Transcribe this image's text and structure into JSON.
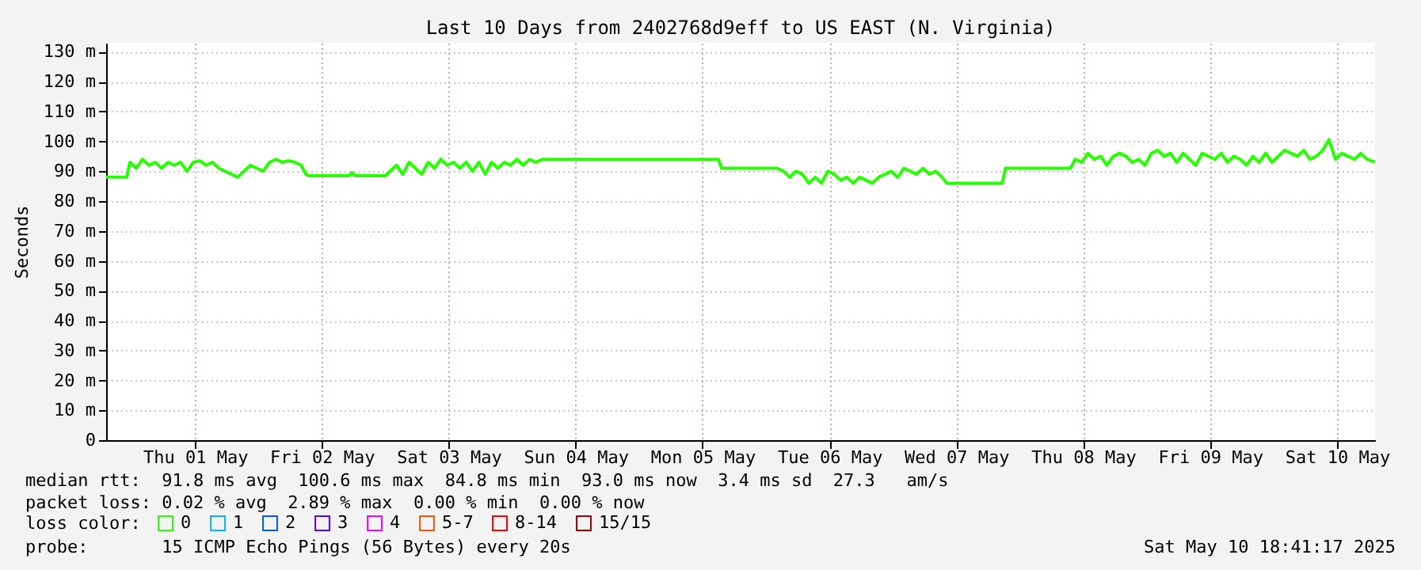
{
  "chart_data": {
    "type": "line",
    "title": "Last 10 Days from 2402768d9eff to US EAST (N. Virginia)",
    "ylabel": "Seconds",
    "x": [
      "2025-04-30T19:12",
      "2025-04-30T23:06",
      "2025-04-30T23:42",
      "2025-05-01T00:54",
      "2025-05-01T02:06",
      "2025-05-01T03:18",
      "2025-05-01T04:30",
      "2025-05-01T05:42",
      "2025-05-01T06:54",
      "2025-05-01T08:06",
      "2025-05-01T09:18",
      "2025-05-01T10:30",
      "2025-05-01T11:42",
      "2025-05-01T12:54",
      "2025-05-01T14:06",
      "2025-05-01T15:18",
      "2025-05-01T16:30",
      "2025-05-01T17:42",
      "2025-05-01T18:54",
      "2025-05-01T20:06",
      "2025-05-01T21:18",
      "2025-05-01T22:30",
      "2025-05-01T23:42",
      "2025-05-02T00:54",
      "2025-05-02T02:06",
      "2025-05-02T03:18",
      "2025-05-02T04:30",
      "2025-05-02T05:42",
      "2025-05-02T06:54",
      "2025-05-02T08:06",
      "2025-05-02T09:00",
      "2025-05-02T09:36",
      "2025-05-02T17:06",
      "2025-05-02T17:42",
      "2025-05-02T18:18",
      "2025-05-03T00:00",
      "2025-05-03T00:54",
      "2025-05-03T02:06",
      "2025-05-03T03:18",
      "2025-05-03T04:30",
      "2025-05-03T05:42",
      "2025-05-03T06:54",
      "2025-05-03T08:06",
      "2025-05-03T09:18",
      "2025-05-03T10:30",
      "2025-05-03T11:42",
      "2025-05-03T12:54",
      "2025-05-03T14:06",
      "2025-05-03T15:18",
      "2025-05-03T16:30",
      "2025-05-03T17:42",
      "2025-05-03T18:54",
      "2025-05-03T20:06",
      "2025-05-03T21:18",
      "2025-05-03T22:30",
      "2025-05-03T23:42",
      "2025-05-04T00:54",
      "2025-05-04T02:06",
      "2025-05-04T03:18",
      "2025-05-04T04:30",
      "2025-05-04T05:42",
      "2025-05-04T07:30",
      "2025-05-04T23:06",
      "2025-05-05T15:00",
      "2025-05-05T15:36",
      "2025-05-06T02:06",
      "2025-05-06T03:18",
      "2025-05-06T04:30",
      "2025-05-06T05:42",
      "2025-05-06T06:54",
      "2025-05-06T08:06",
      "2025-05-06T09:18",
      "2025-05-06T10:30",
      "2025-05-06T11:42",
      "2025-05-06T12:54",
      "2025-05-06T14:06",
      "2025-05-06T15:18",
      "2025-05-06T16:30",
      "2025-05-06T17:42",
      "2025-05-06T18:54",
      "2025-05-06T20:06",
      "2025-05-06T21:18",
      "2025-05-06T22:30",
      "2025-05-06T23:42",
      "2025-05-07T00:54",
      "2025-05-07T02:06",
      "2025-05-07T03:18",
      "2025-05-07T04:30",
      "2025-05-07T05:42",
      "2025-05-07T06:54",
      "2025-05-07T08:06",
      "2025-05-07T09:18",
      "2025-05-07T10:12",
      "2025-05-07T20:42",
      "2025-05-07T21:18",
      "2025-05-08T09:36",
      "2025-05-08T10:30",
      "2025-05-08T11:42",
      "2025-05-08T12:54",
      "2025-05-08T14:06",
      "2025-05-08T15:18",
      "2025-05-08T16:30",
      "2025-05-08T17:42",
      "2025-05-08T18:54",
      "2025-05-08T20:06",
      "2025-05-08T21:18",
      "2025-05-08T22:30",
      "2025-05-08T23:42",
      "2025-05-09T00:54",
      "2025-05-09T02:06",
      "2025-05-09T03:18",
      "2025-05-09T04:30",
      "2025-05-09T05:42",
      "2025-05-09T06:54",
      "2025-05-09T08:06",
      "2025-05-09T09:18",
      "2025-05-09T10:30",
      "2025-05-09T11:42",
      "2025-05-09T12:54",
      "2025-05-09T14:06",
      "2025-05-09T15:18",
      "2025-05-09T16:30",
      "2025-05-09T17:42",
      "2025-05-09T18:54",
      "2025-05-09T20:06",
      "2025-05-09T21:18",
      "2025-05-09T22:30",
      "2025-05-09T23:42",
      "2025-05-10T00:54",
      "2025-05-10T02:06",
      "2025-05-10T03:18",
      "2025-05-10T04:30",
      "2025-05-10T05:42",
      "2025-05-10T06:54",
      "2025-05-10T08:06",
      "2025-05-10T09:18",
      "2025-05-10T10:30",
      "2025-05-10T11:42",
      "2025-05-10T12:54",
      "2025-05-10T14:06",
      "2025-05-10T15:18",
      "2025-05-10T16:30",
      "2025-05-10T17:42",
      "2025-05-10T19:12"
    ],
    "series": [
      {
        "name": "0",
        "color": "#26ff00",
        "values": [
          88,
          88,
          93,
          91,
          94,
          92,
          93,
          91,
          93,
          92,
          93,
          90,
          93,
          93.5,
          92,
          93,
          91,
          90,
          89,
          88,
          90,
          92,
          91,
          90,
          93,
          94,
          93,
          93.5,
          93,
          92,
          89,
          88.5,
          88.5,
          89.5,
          88.5,
          88.5,
          90,
          92,
          89,
          93,
          91,
          89,
          93,
          91,
          94,
          92,
          93,
          91,
          93,
          90,
          93,
          89,
          93,
          91,
          93,
          92,
          94,
          92,
          94,
          93,
          94,
          94,
          94,
          94,
          91,
          91,
          90,
          88,
          90,
          89,
          86,
          88,
          86,
          90,
          89,
          87,
          88,
          86,
          88,
          87,
          86,
          88,
          89,
          90,
          88,
          91,
          90,
          89,
          91,
          89,
          90,
          88,
          86,
          86,
          91,
          91,
          94,
          93,
          96,
          94,
          95,
          92,
          95,
          96,
          95,
          93,
          94,
          92,
          96,
          97,
          95,
          96,
          93,
          96,
          94,
          92,
          96,
          95,
          94,
          96,
          93,
          95,
          94,
          92,
          95,
          93,
          96,
          93,
          95,
          97,
          96,
          95,
          97,
          94,
          95,
          97,
          100.6,
          94,
          96,
          95,
          94,
          96,
          94,
          93
        ]
      },
      {
        "name": "1",
        "color": "#00b8ff",
        "values": [
          null,
          null,
          null,
          null,
          null,
          null,
          null,
          null,
          null,
          null,
          null,
          null,
          null,
          null,
          null,
          null,
          null,
          null,
          null,
          null,
          null,
          null,
          null,
          null,
          null,
          null,
          null,
          null,
          null,
          null,
          null,
          null,
          null,
          null,
          null,
          null,
          null,
          null,
          null,
          null,
          null,
          null,
          null,
          null,
          null,
          null,
          null,
          null,
          null,
          null,
          null,
          null,
          null,
          null,
          null,
          null,
          null,
          null,
          null,
          null,
          null,
          null,
          null,
          null,
          null,
          null,
          null,
          null,
          null,
          null,
          null,
          null,
          null,
          null,
          null,
          null,
          null,
          null,
          null,
          null,
          null,
          null,
          null,
          null,
          null,
          null,
          null,
          null,
          null,
          null,
          null,
          null,
          null,
          null,
          null,
          null,
          null,
          null,
          null,
          null,
          null,
          null,
          null,
          null,
          null,
          null,
          null,
          null,
          null,
          null,
          null,
          null,
          null,
          null,
          null,
          null,
          null,
          null,
          null,
          null,
          null,
          null,
          null,
          null,
          null,
          null,
          null,
          null,
          null,
          null,
          null,
          null,
          null,
          null,
          null,
          null,
          null,
          null,
          null,
          null,
          null,
          null,
          null,
          null
        ]
      },
      {
        "name": "2",
        "color": "#0059ff",
        "values": [
          null,
          null,
          null,
          null,
          null,
          null,
          null,
          null,
          null,
          null,
          null,
          null,
          null,
          null,
          null,
          null,
          null,
          null,
          null,
          null,
          null,
          null,
          null,
          null,
          null,
          null,
          null,
          null,
          null,
          null,
          null,
          null,
          null,
          null,
          null,
          null,
          null,
          null,
          null,
          null,
          null,
          null,
          null,
          null,
          null,
          null,
          null,
          null,
          null,
          null,
          null,
          null,
          null,
          null,
          null,
          null,
          null,
          null,
          null,
          null,
          null,
          null,
          null,
          null,
          null,
          null,
          null,
          null,
          null,
          null,
          null,
          null,
          null,
          null,
          null,
          null,
          null,
          null,
          null,
          null,
          null,
          null,
          null,
          null,
          null,
          null,
          null,
          null,
          null,
          null,
          null,
          null,
          null,
          null,
          null,
          null,
          null,
          null,
          null,
          null,
          null,
          null,
          null,
          null,
          null,
          null,
          null,
          null,
          null,
          null,
          null,
          null,
          null,
          null,
          null,
          null,
          null,
          null,
          null,
          null,
          null,
          null,
          null,
          null,
          null,
          null,
          null,
          null,
          null,
          null,
          null,
          null,
          null,
          null,
          null,
          null,
          null,
          null,
          null,
          null,
          null,
          null,
          null,
          null
        ]
      },
      {
        "name": "3",
        "color": "#5e00ff",
        "values": [
          null,
          null,
          null,
          null,
          null,
          null,
          null,
          null,
          null,
          null,
          null,
          null,
          null,
          null,
          null,
          null,
          null,
          null,
          null,
          null,
          null,
          null,
          null,
          null,
          null,
          null,
          null,
          null,
          null,
          null,
          null,
          null,
          null,
          null,
          null,
          null,
          null,
          null,
          null,
          null,
          null,
          null,
          null,
          null,
          null,
          null,
          null,
          null,
          null,
          null,
          null,
          null,
          null,
          null,
          null,
          null,
          null,
          null,
          null,
          null,
          null,
          null,
          null,
          null,
          null,
          null,
          null,
          null,
          null,
          null,
          null,
          null,
          null,
          null,
          null,
          null,
          null,
          null,
          null,
          null,
          null,
          null,
          null,
          null,
          null,
          null,
          null,
          null,
          null,
          null,
          null,
          null,
          null,
          null,
          null,
          null,
          null,
          null,
          null,
          null,
          null,
          null,
          null,
          null,
          null,
          null,
          null,
          null,
          null,
          null,
          null,
          null,
          null,
          null,
          null,
          null,
          null,
          null,
          null,
          null,
          null,
          null,
          null,
          null,
          null,
          null,
          null,
          null,
          null,
          null,
          null,
          null,
          null,
          null,
          null,
          null,
          null,
          null,
          null,
          null,
          null,
          null,
          null,
          null
        ]
      },
      {
        "name": "4",
        "color": "#ff00ff",
        "values": [
          null,
          null,
          null,
          null,
          null,
          null,
          null,
          null,
          null,
          null,
          null,
          null,
          null,
          null,
          null,
          null,
          null,
          null,
          null,
          null,
          null,
          null,
          null,
          null,
          null,
          null,
          null,
          null,
          null,
          null,
          null,
          null,
          null,
          null,
          null,
          null,
          null,
          null,
          null,
          null,
          null,
          null,
          null,
          null,
          null,
          null,
          null,
          null,
          null,
          null,
          null,
          null,
          null,
          null,
          null,
          null,
          null,
          null,
          null,
          null,
          null,
          null,
          null,
          null,
          null,
          null,
          null,
          null,
          null,
          null,
          null,
          null,
          null,
          null,
          null,
          null,
          null,
          null,
          null,
          null,
          null,
          null,
          null,
          null,
          null,
          null,
          null,
          null,
          null,
          null,
          null,
          null,
          null,
          null,
          null,
          null,
          null,
          null,
          null,
          null,
          null,
          null,
          null,
          null,
          null,
          null,
          null,
          null,
          null,
          null,
          null,
          null,
          null,
          null,
          null,
          null,
          null,
          null,
          null,
          null,
          null,
          null,
          null,
          null,
          null,
          null,
          null,
          null,
          null,
          null,
          null,
          null,
          null,
          null,
          null,
          null,
          null,
          null,
          null,
          null,
          null,
          null,
          null,
          null
        ]
      },
      {
        "name": "5-7",
        "color": "#ff5500",
        "values": [
          null,
          null,
          null,
          null,
          null,
          null,
          null,
          null,
          null,
          null,
          null,
          null,
          null,
          null,
          null,
          null,
          null,
          null,
          null,
          null,
          null,
          null,
          null,
          null,
          null,
          null,
          null,
          null,
          null,
          null,
          null,
          null,
          null,
          null,
          null,
          null,
          null,
          null,
          null,
          null,
          null,
          null,
          null,
          null,
          null,
          null,
          null,
          null,
          null,
          null,
          null,
          null,
          null,
          null,
          null,
          null,
          null,
          null,
          null,
          null,
          null,
          null,
          null,
          null,
          null,
          null,
          null,
          null,
          null,
          null,
          null,
          null,
          null,
          null,
          null,
          null,
          null,
          null,
          null,
          null,
          null,
          null,
          null,
          null,
          null,
          null,
          null,
          null,
          null,
          null,
          null,
          null,
          null,
          null,
          null,
          null,
          null,
          null,
          null,
          null,
          null,
          null,
          null,
          null,
          null,
          null,
          null,
          null,
          null,
          null,
          null,
          null,
          null,
          null,
          null,
          null,
          null,
          null,
          null,
          null,
          null,
          null,
          null,
          null,
          null,
          null,
          null,
          null,
          null,
          null,
          null,
          null,
          null,
          null,
          null,
          null,
          null,
          null,
          null,
          null,
          null,
          null,
          null,
          null
        ]
      },
      {
        "name": "8-14",
        "color": "#ff0000",
        "values": [
          null,
          null,
          null,
          null,
          null,
          null,
          null,
          null,
          null,
          null,
          null,
          null,
          null,
          null,
          null,
          null,
          null,
          null,
          null,
          null,
          null,
          null,
          null,
          null,
          null,
          null,
          null,
          null,
          null,
          null,
          null,
          null,
          null,
          null,
          null,
          null,
          null,
          null,
          null,
          null,
          null,
          null,
          null,
          null,
          null,
          null,
          null,
          null,
          null,
          null,
          null,
          null,
          null,
          null,
          null,
          null,
          null,
          null,
          null,
          null,
          null,
          null,
          null,
          null,
          null,
          null,
          null,
          null,
          null,
          null,
          null,
          null,
          null,
          null,
          null,
          null,
          null,
          null,
          null,
          null,
          null,
          null,
          null,
          null,
          null,
          null,
          null,
          null,
          null,
          null,
          null,
          null,
          null,
          null,
          null,
          null,
          null,
          null,
          null,
          null,
          null,
          null,
          null,
          null,
          null,
          null,
          null,
          null,
          null,
          null,
          null,
          null,
          null,
          null,
          null,
          null,
          null,
          null,
          null,
          null,
          null,
          null,
          null,
          null,
          null,
          null,
          null,
          null,
          null,
          null,
          null,
          null,
          null,
          null,
          null,
          null,
          null,
          null,
          null,
          null,
          null,
          null,
          null,
          null
        ]
      },
      {
        "name": "15/15",
        "color": "#a10000",
        "values": [
          null,
          null,
          null,
          null,
          null,
          null,
          null,
          null,
          null,
          null,
          null,
          null,
          null,
          null,
          null,
          null,
          null,
          null,
          null,
          null,
          null,
          null,
          null,
          null,
          null,
          null,
          null,
          null,
          null,
          null,
          null,
          null,
          null,
          null,
          null,
          null,
          null,
          null,
          null,
          null,
          null,
          null,
          null,
          null,
          null,
          null,
          null,
          null,
          null,
          null,
          null,
          null,
          null,
          null,
          null,
          null,
          null,
          null,
          null,
          null,
          null,
          null,
          null,
          null,
          null,
          null,
          null,
          null,
          null,
          null,
          null,
          null,
          null,
          null,
          null,
          null,
          null,
          null,
          null,
          null,
          null,
          null,
          null,
          null,
          null,
          null,
          null,
          null,
          null,
          null,
          null,
          null,
          null,
          null,
          null,
          null,
          null,
          null,
          null,
          null,
          null,
          null,
          null,
          null,
          null,
          null,
          null,
          null,
          null,
          null,
          null,
          null,
          null,
          null,
          null,
          null,
          null,
          null,
          null,
          null,
          null,
          null,
          null,
          null,
          null,
          null,
          null,
          null,
          null,
          null,
          null,
          null,
          null,
          null,
          null,
          null,
          null,
          null,
          null,
          null,
          null,
          null,
          null,
          null
        ]
      }
    ],
    "legend_title": "loss color:",
    "legend": "bottom left",
    "grid": true,
    "xlim": [
      "2025-04-30T19:12",
      "2025-05-10T19:12"
    ],
    "xticks": [
      {
        "value": "2025-05-01T12:00",
        "label": "Thu 01 May"
      },
      {
        "value": "2025-05-02T12:00",
        "label": "Fri 02 May"
      },
      {
        "value": "2025-05-03T12:00",
        "label": "Sat 03 May"
      },
      {
        "value": "2025-05-04T12:00",
        "label": "Sun 04 May"
      },
      {
        "value": "2025-05-05T12:00",
        "label": "Mon 05 May"
      },
      {
        "value": "2025-05-06T12:00",
        "label": "Tue 06 May"
      },
      {
        "value": "2025-05-07T12:00",
        "label": "Wed 07 May"
      },
      {
        "value": "2025-05-08T12:00",
        "label": "Thu 08 May"
      },
      {
        "value": "2025-05-09T12:00",
        "label": "Fri 09 May"
      },
      {
        "value": "2025-05-10T12:00",
        "label": "Sat 10 May"
      }
    ],
    "ylim": [
      0,
      133
    ],
    "yticks": [
      0,
      {
        "value": 10,
        "label": "10 m"
      },
      {
        "value": 20,
        "label": "20 m"
      },
      {
        "value": 30,
        "label": "30 m"
      },
      {
        "value": 40,
        "label": "40 m"
      },
      {
        "value": 50,
        "label": "50 m"
      },
      {
        "value": 60,
        "label": "60 m"
      },
      {
        "value": 70,
        "label": "70 m"
      },
      {
        "value": 80,
        "label": "80 m"
      },
      {
        "value": 90,
        "label": "90 m"
      },
      {
        "value": 100,
        "label": "100 m"
      },
      {
        "value": 110,
        "label": "110 m"
      },
      {
        "value": 120,
        "label": "120 m"
      },
      {
        "value": 130,
        "label": "130 m"
      }
    ],
    "annotations": [
      "median rtt:  91.8 ms avg  100.6 ms max  84.8 ms min  93.0 ms now  3.4 ms sd  27.3   am/s",
      "packet loss: 0.02 % avg  2.89 % max  0.00 % min  0.00 % now",
      "probe:       15 ICMP Echo Pings (56 Bytes) every 20s",
      "Sat May 10 18:41:17 2025"
    ]
  }
}
